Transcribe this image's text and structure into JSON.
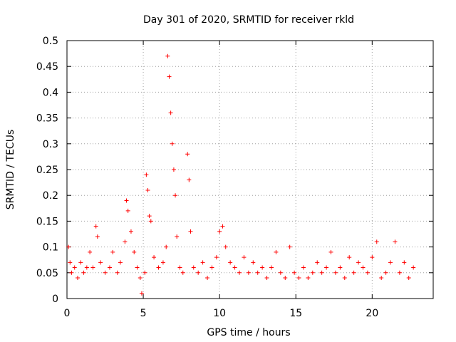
{
  "chart_data": {
    "type": "scatter",
    "title": "Day 301 of 2020, SRMTID for receiver rkld",
    "xlabel": "GPS time / hours",
    "ylabel": "SRMTID / TECUs",
    "xlim": [
      0,
      24
    ],
    "ylim": [
      0,
      0.5
    ],
    "x_ticks": [
      0,
      5,
      10,
      15,
      20
    ],
    "x_tick_labels": [
      "0",
      "5",
      "10",
      "15",
      "20"
    ],
    "y_ticks": [
      0,
      0.05,
      0.1,
      0.15,
      0.2,
      0.25,
      0.3,
      0.35,
      0.4,
      0.45,
      0.5
    ],
    "y_tick_labels": [
      "0",
      "0.05",
      "0.1",
      "0.15",
      "0.2",
      "0.25",
      "0.3",
      "0.35",
      "0.4",
      "0.45",
      "0.5"
    ],
    "grid": true,
    "marker": "+",
    "color": "#ff0000",
    "series": [
      {
        "name": "SRMTID",
        "points": [
          [
            0.1,
            0.1
          ],
          [
            0.2,
            0.07
          ],
          [
            0.3,
            0.05
          ],
          [
            0.5,
            0.06
          ],
          [
            0.7,
            0.04
          ],
          [
            0.9,
            0.07
          ],
          [
            1.1,
            0.05
          ],
          [
            1.3,
            0.06
          ],
          [
            1.5,
            0.09
          ],
          [
            1.7,
            0.06
          ],
          [
            1.9,
            0.14
          ],
          [
            2.0,
            0.12
          ],
          [
            2.2,
            0.07
          ],
          [
            2.5,
            0.05
          ],
          [
            2.8,
            0.06
          ],
          [
            3.0,
            0.09
          ],
          [
            3.3,
            0.05
          ],
          [
            3.5,
            0.07
          ],
          [
            3.8,
            0.11
          ],
          [
            3.9,
            0.19
          ],
          [
            4.0,
            0.17
          ],
          [
            4.2,
            0.13
          ],
          [
            4.4,
            0.09
          ],
          [
            4.6,
            0.06
          ],
          [
            4.8,
            0.04
          ],
          [
            4.9,
            0.01
          ],
          [
            5.1,
            0.05
          ],
          [
            5.2,
            0.24
          ],
          [
            5.3,
            0.21
          ],
          [
            5.4,
            0.16
          ],
          [
            5.5,
            0.15
          ],
          [
            5.7,
            0.08
          ],
          [
            6.0,
            0.06
          ],
          [
            6.3,
            0.07
          ],
          [
            6.5,
            0.1
          ],
          [
            6.6,
            0.47
          ],
          [
            6.7,
            0.43
          ],
          [
            6.8,
            0.36
          ],
          [
            6.9,
            0.3
          ],
          [
            7.0,
            0.25
          ],
          [
            7.1,
            0.2
          ],
          [
            7.2,
            0.12
          ],
          [
            7.4,
            0.06
          ],
          [
            7.6,
            0.05
          ],
          [
            7.9,
            0.28
          ],
          [
            8.0,
            0.23
          ],
          [
            8.1,
            0.13
          ],
          [
            8.3,
            0.06
          ],
          [
            8.6,
            0.05
          ],
          [
            8.9,
            0.07
          ],
          [
            9.2,
            0.04
          ],
          [
            9.5,
            0.06
          ],
          [
            9.8,
            0.08
          ],
          [
            10.0,
            0.13
          ],
          [
            10.2,
            0.14
          ],
          [
            10.4,
            0.1
          ],
          [
            10.7,
            0.07
          ],
          [
            11.0,
            0.06
          ],
          [
            11.3,
            0.05
          ],
          [
            11.6,
            0.08
          ],
          [
            11.9,
            0.05
          ],
          [
            12.2,
            0.07
          ],
          [
            12.5,
            0.05
          ],
          [
            12.8,
            0.06
          ],
          [
            13.1,
            0.04
          ],
          [
            13.4,
            0.06
          ],
          [
            13.7,
            0.09
          ],
          [
            14.0,
            0.05
          ],
          [
            14.3,
            0.04
          ],
          [
            14.6,
            0.1
          ],
          [
            14.9,
            0.05
          ],
          [
            15.2,
            0.04
          ],
          [
            15.5,
            0.06
          ],
          [
            15.8,
            0.04
          ],
          [
            16.1,
            0.05
          ],
          [
            16.4,
            0.07
          ],
          [
            16.7,
            0.05
          ],
          [
            17.0,
            0.06
          ],
          [
            17.3,
            0.09
          ],
          [
            17.6,
            0.05
          ],
          [
            17.9,
            0.06
          ],
          [
            18.2,
            0.04
          ],
          [
            18.5,
            0.08
          ],
          [
            18.8,
            0.05
          ],
          [
            19.1,
            0.07
          ],
          [
            19.4,
            0.06
          ],
          [
            19.7,
            0.05
          ],
          [
            20.0,
            0.08
          ],
          [
            20.3,
            0.11
          ],
          [
            20.6,
            0.04
          ],
          [
            20.9,
            0.05
          ],
          [
            21.2,
            0.07
          ],
          [
            21.5,
            0.11
          ],
          [
            21.8,
            0.05
          ],
          [
            22.1,
            0.07
          ],
          [
            22.4,
            0.04
          ],
          [
            22.7,
            0.06
          ]
        ]
      }
    ]
  }
}
